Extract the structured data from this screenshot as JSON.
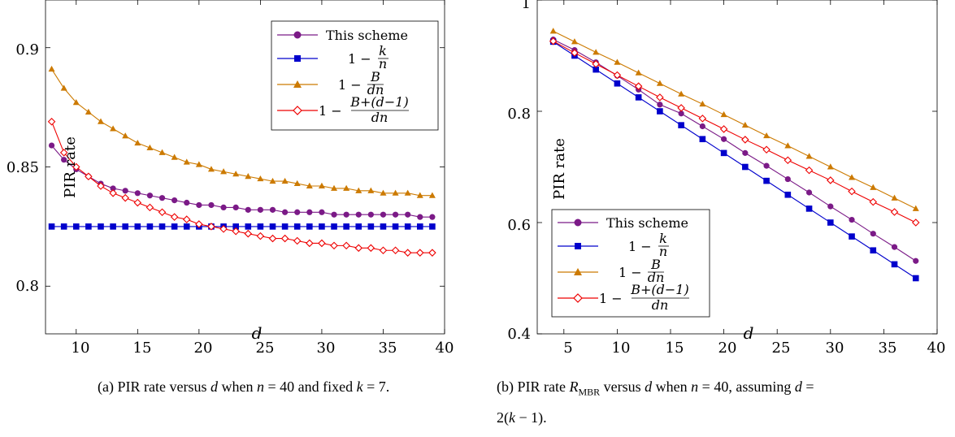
{
  "chart_data": [
    {
      "type": "line",
      "caption": "(a) PIR rate versus d when n = 40 and fixed k = 7.",
      "xlabel": "d",
      "ylabel": "PIR rate",
      "xlim": [
        7.5,
        40
      ],
      "ylim": [
        0.78,
        0.92
      ],
      "xticks": [
        "10",
        "15",
        "20",
        "25",
        "30",
        "35",
        "40"
      ],
      "xtick_values": [
        10,
        15,
        20,
        25,
        30,
        35,
        40
      ],
      "yticks": [
        "0.8",
        "0.85",
        "0.9"
      ],
      "ytick_values": [
        0.8,
        0.85,
        0.9
      ],
      "legend_position": "top-right",
      "x": [
        8,
        9,
        10,
        11,
        12,
        13,
        14,
        15,
        16,
        17,
        18,
        19,
        20,
        21,
        22,
        23,
        24,
        25,
        26,
        27,
        28,
        29,
        30,
        31,
        32,
        33,
        34,
        35,
        36,
        37,
        38,
        39
      ],
      "series": [
        {
          "name": "This scheme",
          "color": "#7b1a87",
          "marker": "circle",
          "values": [
            0.859,
            0.853,
            0.849,
            0.846,
            0.843,
            0.841,
            0.84,
            0.839,
            0.838,
            0.837,
            0.836,
            0.835,
            0.834,
            0.834,
            0.833,
            0.833,
            0.832,
            0.832,
            0.832,
            0.831,
            0.831,
            0.831,
            0.831,
            0.83,
            0.83,
            0.83,
            0.83,
            0.83,
            0.83,
            0.83,
            0.829,
            0.829
          ]
        },
        {
          "name": "1 − k/n",
          "color": "#0000cc",
          "marker": "square",
          "values": [
            0.825,
            0.825,
            0.825,
            0.825,
            0.825,
            0.825,
            0.825,
            0.825,
            0.825,
            0.825,
            0.825,
            0.825,
            0.825,
            0.825,
            0.825,
            0.825,
            0.825,
            0.825,
            0.825,
            0.825,
            0.825,
            0.825,
            0.825,
            0.825,
            0.825,
            0.825,
            0.825,
            0.825,
            0.825,
            0.825,
            0.825,
            0.825
          ]
        },
        {
          "name": "1 − B/dn",
          "color": "#cc7a00",
          "marker": "triangle",
          "values": [
            0.891,
            0.883,
            0.877,
            0.873,
            0.869,
            0.866,
            0.863,
            0.86,
            0.858,
            0.856,
            0.854,
            0.852,
            0.851,
            0.849,
            0.848,
            0.847,
            0.846,
            0.845,
            0.844,
            0.844,
            0.843,
            0.842,
            0.842,
            0.841,
            0.841,
            0.84,
            0.84,
            0.839,
            0.839,
            0.839,
            0.838,
            0.838
          ]
        },
        {
          "name": "1 − (B+(d−1))/dn",
          "color": "#ee0000",
          "marker": "diamond",
          "values": [
            0.869,
            0.856,
            0.85,
            0.846,
            0.842,
            0.839,
            0.837,
            0.835,
            0.833,
            0.831,
            0.829,
            0.828,
            0.826,
            0.825,
            0.824,
            0.823,
            0.822,
            0.821,
            0.82,
            0.82,
            0.819,
            0.818,
            0.818,
            0.817,
            0.817,
            0.816,
            0.816,
            0.815,
            0.815,
            0.814,
            0.814,
            0.814
          ]
        }
      ]
    },
    {
      "type": "line",
      "caption": "(b) PIR rate R_MBR versus d when n = 40, assuming d = 2(k − 1).",
      "xlabel": "d",
      "ylabel": "PIR rate",
      "xlim": [
        2.5,
        40
      ],
      "ylim": [
        0.4,
        1
      ],
      "xticks": [
        "5",
        "10",
        "15",
        "20",
        "25",
        "30",
        "35",
        "40"
      ],
      "xtick_values": [
        5,
        10,
        15,
        20,
        25,
        30,
        35,
        40
      ],
      "yticks": [
        "0.4",
        "0.6",
        "0.8",
        "1"
      ],
      "ytick_values": [
        0.4,
        0.6,
        0.8,
        1.0
      ],
      "legend_position": "bottom-left",
      "x": [
        4,
        6,
        8,
        10,
        12,
        14,
        16,
        18,
        20,
        22,
        24,
        26,
        28,
        30,
        32,
        34,
        36,
        38
      ],
      "series": [
        {
          "name": "This scheme",
          "color": "#7b1a87",
          "marker": "circle",
          "values": [
            0.929,
            0.91,
            0.888,
            0.864,
            0.839,
            0.812,
            0.796,
            0.773,
            0.75,
            0.725,
            0.702,
            0.678,
            0.654,
            0.629,
            0.605,
            0.58,
            0.556,
            0.531
          ]
        },
        {
          "name": "1 − k/n",
          "color": "#0000cc",
          "marker": "square",
          "values": [
            0.925,
            0.9,
            0.875,
            0.85,
            0.825,
            0.8,
            0.775,
            0.75,
            0.725,
            0.7,
            0.675,
            0.65,
            0.625,
            0.6,
            0.575,
            0.55,
            0.525,
            0.5
          ]
        },
        {
          "name": "1 − B/dn",
          "color": "#cc7a00",
          "marker": "triangle",
          "values": [
            0.944,
            0.925,
            0.906,
            0.888,
            0.869,
            0.85,
            0.831,
            0.813,
            0.794,
            0.775,
            0.756,
            0.738,
            0.719,
            0.7,
            0.681,
            0.663,
            0.644,
            0.625
          ]
        },
        {
          "name": "1 − (B+(d−1))/dn",
          "color": "#ee0000",
          "marker": "diamond",
          "values": [
            0.926,
            0.905,
            0.885,
            0.865,
            0.845,
            0.825,
            0.806,
            0.787,
            0.768,
            0.749,
            0.731,
            0.712,
            0.694,
            0.676,
            0.656,
            0.637,
            0.619,
            0.6
          ]
        }
      ]
    }
  ]
}
